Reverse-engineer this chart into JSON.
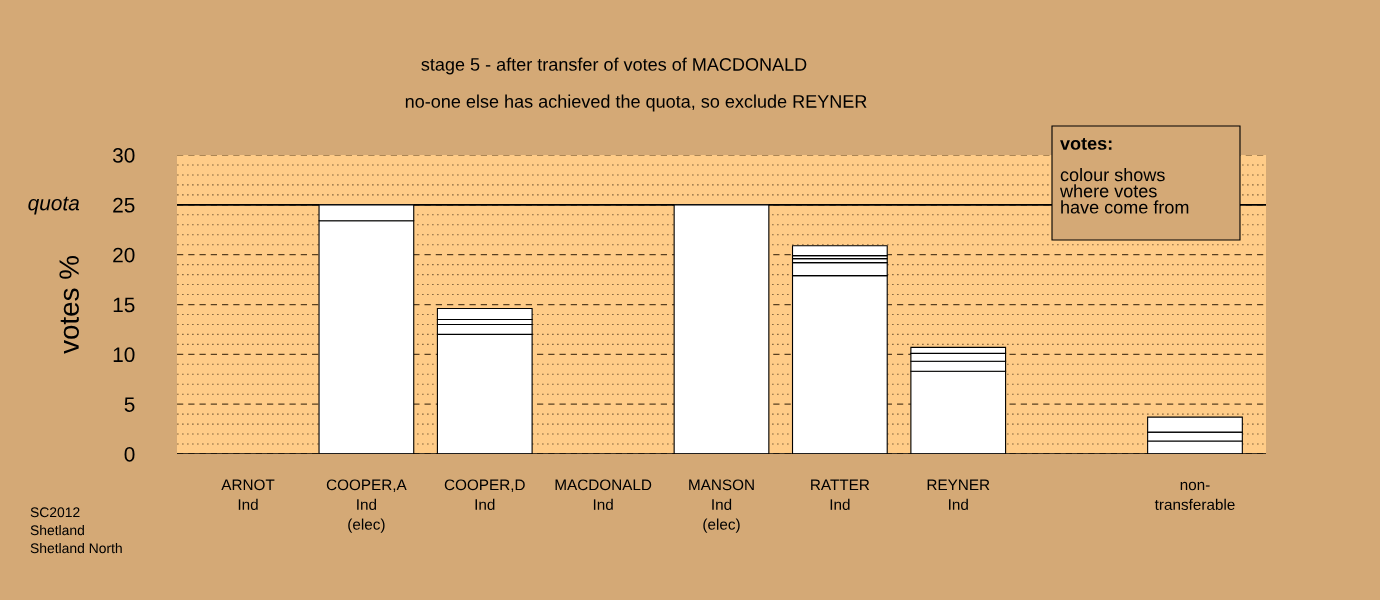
{
  "chart_data": {
    "type": "bar",
    "stacked": true,
    "title": "stage 5 - after transfer of votes of MACDONALD",
    "subtitle": "no-one else has achieved the quota, so exclude REYNER",
    "ylabel": "votes %",
    "categories": [
      "ARNOT\nInd",
      "COOPER,A\nInd\n(elec)",
      "COOPER,D\nInd",
      "MACDONALD\nInd",
      "MANSON\nInd\n(elec)",
      "RATTER\nInd",
      "REYNER\nInd",
      null,
      "non-\ntransferable"
    ],
    "series": [
      {
        "color": "#ffffff",
        "values": [
          0,
          23.4,
          12.0,
          0,
          25.0,
          17.9,
          8.3,
          null,
          1.3
        ]
      },
      {
        "color": "#ffffff",
        "values": [
          null,
          1.6,
          1.0,
          null,
          null,
          1.3,
          1.0,
          null,
          0.9
        ]
      },
      {
        "color": "#ffffff",
        "values": [
          null,
          null,
          0.5,
          null,
          null,
          0.4,
          0.8,
          null,
          1.5
        ]
      },
      {
        "color": "#ffffff",
        "values": [
          null,
          null,
          1.1,
          null,
          null,
          0.3,
          0.6,
          null,
          null
        ]
      },
      {
        "color": "#ffffff",
        "values": [
          null,
          null,
          null,
          null,
          null,
          1.0,
          null,
          null,
          null
        ]
      }
    ],
    "ylim": [
      0,
      30
    ],
    "yticks": [
      0,
      {
        "value": 1,
        "label": null
      },
      {
        "value": 2,
        "label": null
      },
      {
        "value": 3,
        "label": null
      },
      {
        "value": 4,
        "label": null
      },
      5,
      {
        "value": 6,
        "label": null
      },
      {
        "value": 7,
        "label": null
      },
      {
        "value": 8,
        "label": null
      },
      {
        "value": 9,
        "label": null
      },
      10,
      {
        "value": 11,
        "label": null
      },
      {
        "value": 12,
        "label": null
      },
      {
        "value": 13,
        "label": null
      },
      {
        "value": 14,
        "label": null
      },
      15,
      {
        "value": 16,
        "label": null
      },
      {
        "value": 17,
        "label": null
      },
      {
        "value": 18,
        "label": null
      },
      {
        "value": 19,
        "label": null
      },
      20,
      {
        "value": 21,
        "label": null
      },
      {
        "value": 22,
        "label": null
      },
      {
        "value": 23,
        "label": null
      },
      {
        "value": 24,
        "label": null
      },
      25,
      {
        "value": 26,
        "label": null
      },
      {
        "value": 27,
        "label": null
      },
      {
        "value": 28,
        "label": null
      },
      {
        "value": 29,
        "label": null
      },
      30
    ],
    "grid": "y",
    "ref_lines": [
      {
        "axis": "y",
        "value": 25,
        "label": "quota",
        "color": "#000000",
        "line_style": "solid"
      }
    ],
    "annotations": [
      "votes:",
      "colour shows\nwhere votes\nhave come from",
      "SC2012\nShetland\nShetland North"
    ]
  }
}
